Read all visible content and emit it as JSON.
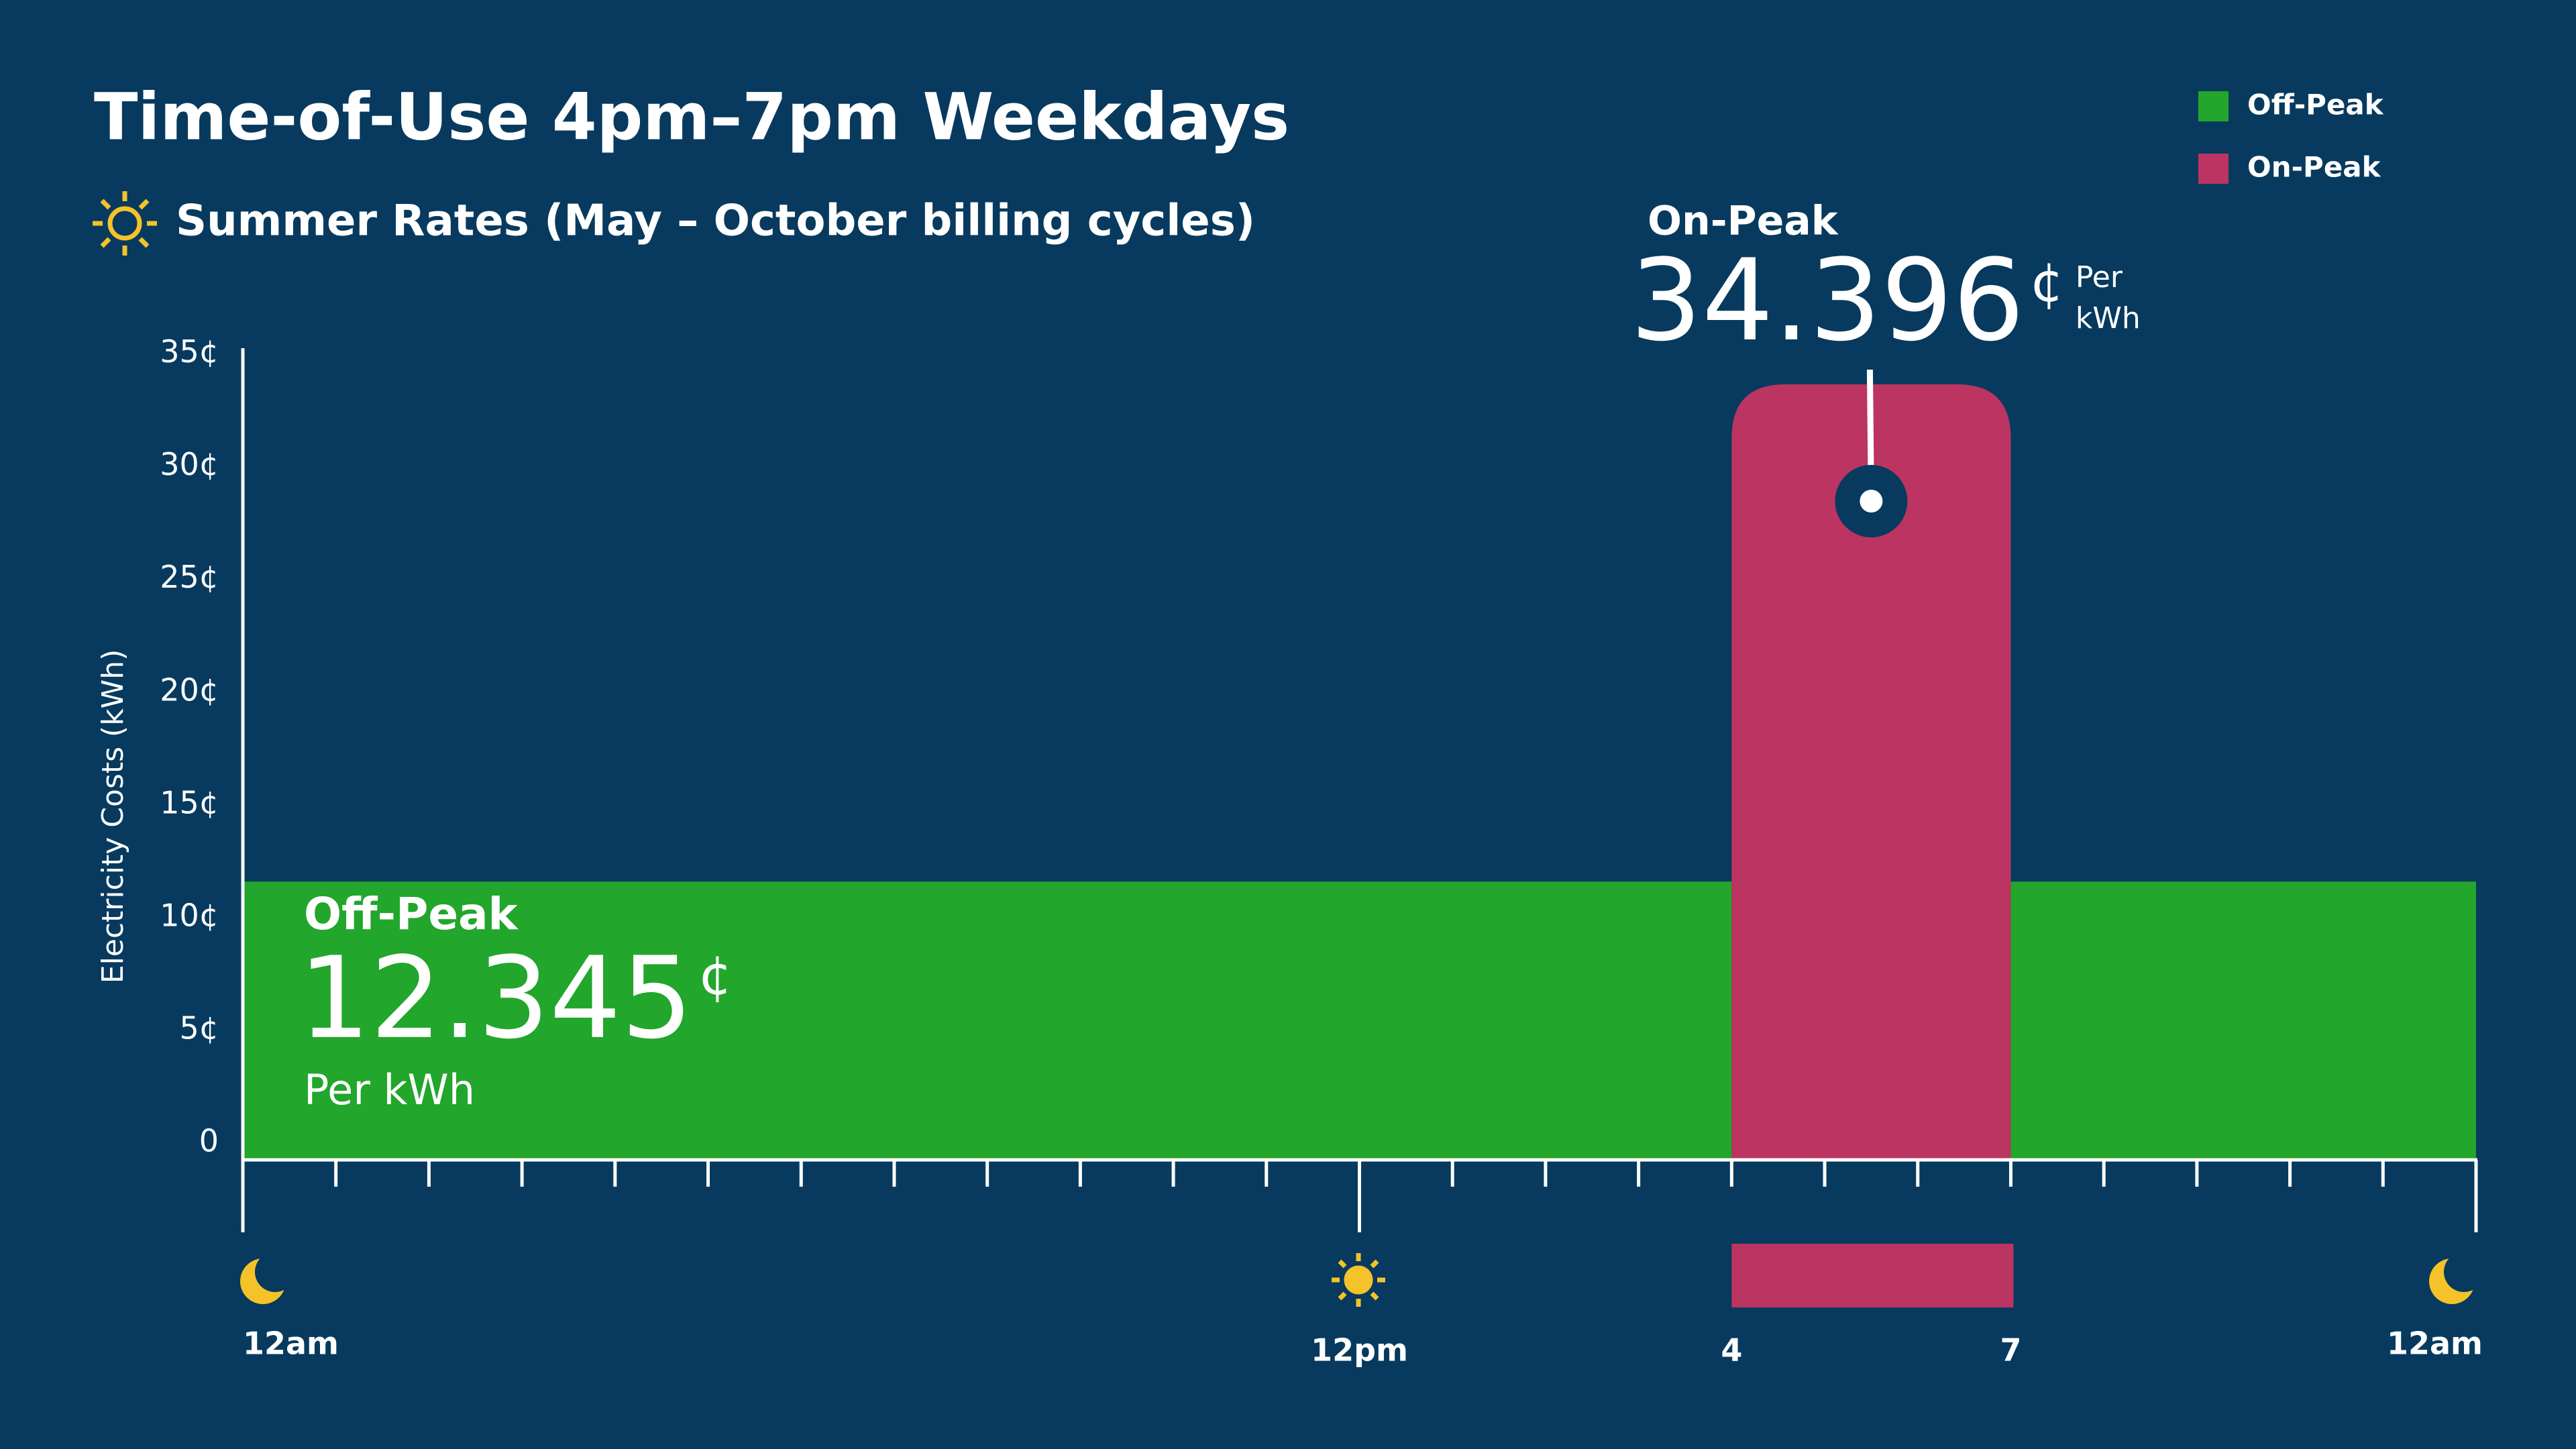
{
  "chart_data": {
    "type": "step",
    "title": "Time-of-Use 4pm–7pm Weekdays",
    "subtitle": "Summer Rates (May – October billing cycles)",
    "y_label": "Electricity Costs (kWh)",
    "ylim": [
      0,
      36
    ],
    "yticks": [
      0,
      {
        "value": 5,
        "label": "5¢"
      },
      {
        "value": 10,
        "label": "10¢"
      },
      {
        "value": 15,
        "label": "15¢"
      },
      {
        "value": 20,
        "label": "20¢"
      },
      {
        "value": 25,
        "label": "25¢"
      },
      {
        "value": 30,
        "label": "30¢"
      },
      {
        "value": 35,
        "label": "35¢"
      }
    ],
    "xlim": [
      0,
      24
    ],
    "xticks": [
      {
        "value": 0,
        "label": "12am"
      },
      {
        "value": 12,
        "label": "12pm"
      },
      {
        "value": 16,
        "label": "4"
      },
      {
        "value": 19,
        "label": "7"
      },
      {
        "value": 24,
        "label": "12am"
      }
    ],
    "xminor_ticks": [
      1,
      2,
      3,
      4,
      5,
      6,
      7,
      8,
      9,
      10,
      11,
      13,
      14,
      15,
      17,
      18,
      20,
      21,
      22,
      23
    ],
    "series": [
      {
        "name": "Off-Peak",
        "color": "#22a62b",
        "x": [
          [
            0,
            16
          ],
          [
            19,
            24
          ]
        ],
        "values": [
          12.345,
          12.345
        ],
        "value_labels": [
          "12.345",
          null
        ]
      },
      {
        "name": "On-Peak",
        "color": "#bc3461",
        "x": [
          [
            16,
            19
          ]
        ],
        "values": [
          34.396
        ],
        "value_labels": [
          "34.396"
        ]
      }
    ],
    "annotations": [
      {
        "title": "Off-Peak",
        "unit": "¢",
        "note": [
          "Per kWh"
        ]
      },
      {
        "title": "On-Peak",
        "unit": "¢",
        "note": [
          "Per",
          "kWh"
        ]
      }
    ],
    "legend": "top-right"
  }
}
